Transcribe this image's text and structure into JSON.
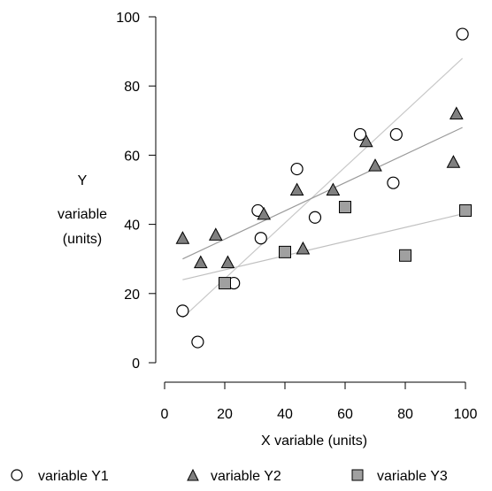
{
  "chart_data": {
    "type": "scatter",
    "xlabel": "X variable (units)",
    "ylabel_lines": [
      "Y",
      "variable",
      "(units)"
    ],
    "xlim": [
      0,
      100
    ],
    "ylim": [
      0,
      100
    ],
    "xticks": [
      0,
      20,
      40,
      60,
      80,
      100
    ],
    "yticks": [
      0,
      20,
      40,
      60,
      80,
      100
    ],
    "grid": false,
    "legend_position": "bottom",
    "series": [
      {
        "name": "variable Y1",
        "marker": "circle",
        "fill": "#ffffff",
        "stroke": "#000000",
        "points": [
          [
            6,
            15
          ],
          [
            11,
            6
          ],
          [
            23,
            23
          ],
          [
            31,
            44
          ],
          [
            32,
            36
          ],
          [
            44,
            56
          ],
          [
            50,
            42
          ],
          [
            65,
            66
          ],
          [
            76,
            52
          ],
          [
            77,
            66
          ],
          [
            99,
            95
          ]
        ],
        "trendline": {
          "from": [
            6,
            13
          ],
          "to": [
            99,
            88
          ],
          "color": "#c8c8c8"
        }
      },
      {
        "name": "variable Y2",
        "marker": "triangle",
        "fill": "#808080",
        "stroke": "#000000",
        "points": [
          [
            6,
            36
          ],
          [
            12,
            29
          ],
          [
            17,
            37
          ],
          [
            21,
            29
          ],
          [
            33,
            43
          ],
          [
            44,
            50
          ],
          [
            46,
            33
          ],
          [
            56,
            50
          ],
          [
            67,
            64
          ],
          [
            70,
            57
          ],
          [
            96,
            58
          ],
          [
            97,
            72
          ]
        ],
        "trendline": {
          "from": [
            6,
            30
          ],
          "to": [
            99,
            68
          ],
          "color": "#9a9a9a"
        }
      },
      {
        "name": "variable Y3",
        "marker": "square",
        "fill": "#a0a0a0",
        "stroke": "#000000",
        "points": [
          [
            20,
            23
          ],
          [
            40,
            32
          ],
          [
            60,
            45
          ],
          [
            80,
            31
          ],
          [
            100,
            44
          ]
        ],
        "trendline": {
          "from": [
            6,
            24
          ],
          "to": [
            99,
            43
          ],
          "color": "#c0c0c0"
        }
      }
    ]
  }
}
